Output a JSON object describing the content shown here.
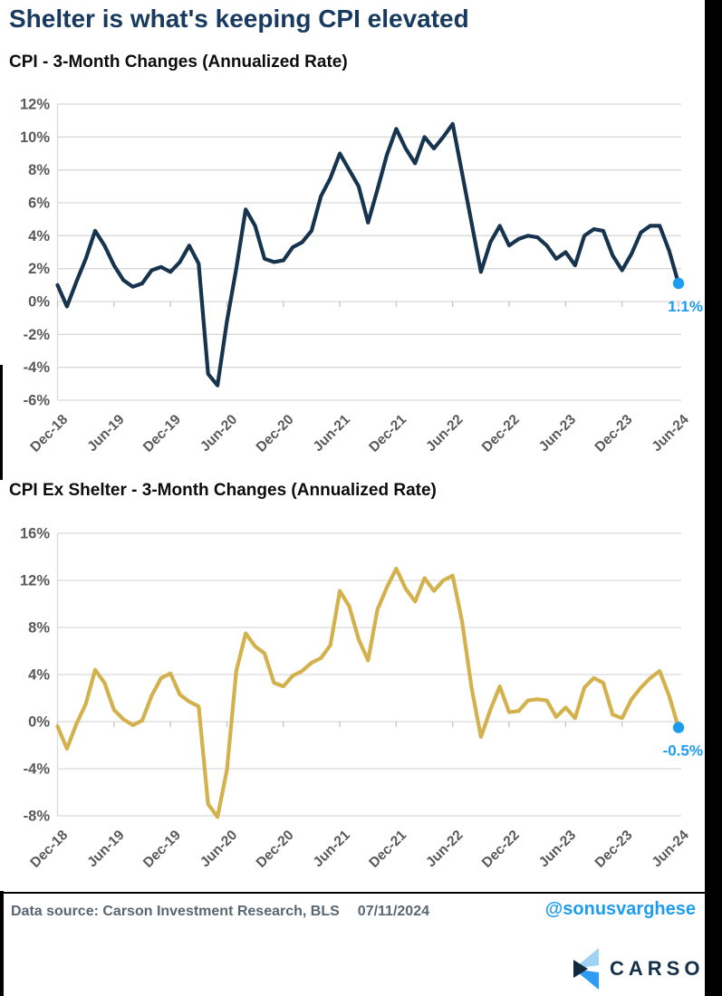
{
  "header": {
    "title": "Shelter is what's keeping CPI elevated"
  },
  "colors": {
    "title_navy": "#173a5e",
    "subtitle_black": "#0d0d0d",
    "axis_text_gray": "#595959",
    "gridline_gray": "#d9d9d9",
    "cpi_line_navy": "#17344f",
    "cpi_ex_shelter_line_gold": "#d3b14c",
    "endpoint_blue": "#1d9bf0",
    "footer_text_gray": "#5a6672",
    "logo_navy": "#14304a",
    "logo_light_blue": "#9fd3f4",
    "logo_bright_blue": "#2d9cf4",
    "logo_dark_navy": "#13293d",
    "border_black": "#000000"
  },
  "chart_data": [
    {
      "type": "line",
      "title": "CPI - 3-Month Changes (Annualized Rate)",
      "unit": "%",
      "frequency": "monthly",
      "x_start": "Dec-18",
      "x_end": "Jun-24",
      "x_tick_labels": [
        "Dec-18",
        "Jun-19",
        "Dec-19",
        "Jun-20",
        "Dec-20",
        "Jun-21",
        "Dec-21",
        "Jun-22",
        "Dec-22",
        "Jun-23",
        "Dec-23",
        "Jun-24"
      ],
      "ylim": [
        -6,
        12
      ],
      "ytick_step": 2,
      "grid": true,
      "line_color": "#17344f",
      "endpoint_color": "#1d9bf0",
      "endpoint_label": "1.1%",
      "values": [
        1.0,
        -0.3,
        1.2,
        2.6,
        4.3,
        3.4,
        2.2,
        1.3,
        0.9,
        1.1,
        1.9,
        2.1,
        1.8,
        2.4,
        3.4,
        2.3,
        -4.4,
        -5.1,
        -1.2,
        2.0,
        5.6,
        4.6,
        2.6,
        2.4,
        2.5,
        3.3,
        3.6,
        4.3,
        6.4,
        7.5,
        9.0,
        8.0,
        7.0,
        4.8,
        6.8,
        8.9,
        10.5,
        9.3,
        8.4,
        10.0,
        9.3,
        10.0,
        10.8,
        7.8,
        4.8,
        1.8,
        3.6,
        4.6,
        3.4,
        3.8,
        4.0,
        3.9,
        3.4,
        2.6,
        3.0,
        2.2,
        4.0,
        4.4,
        4.3,
        2.8,
        1.9,
        2.9,
        4.2,
        4.6,
        4.6,
        3.1,
        1.1
      ]
    },
    {
      "type": "line",
      "title": "CPI Ex Shelter - 3-Month Changes (Annualized Rate)",
      "unit": "%",
      "frequency": "monthly",
      "x_start": "Dec-18",
      "x_end": "Jun-24",
      "x_tick_labels": [
        "Dec-18",
        "Jun-19",
        "Dec-19",
        "Jun-20",
        "Dec-20",
        "Jun-21",
        "Dec-21",
        "Jun-22",
        "Dec-22",
        "Jun-23",
        "Dec-23",
        "Jun-24"
      ],
      "ylim": [
        -8,
        16
      ],
      "ytick_step": 4,
      "grid": true,
      "line_color": "#d3b14c",
      "endpoint_color": "#1d9bf0",
      "endpoint_label": "-0.5%",
      "values": [
        -0.4,
        -2.3,
        -0.2,
        1.5,
        4.4,
        3.3,
        1.0,
        0.2,
        -0.3,
        0.1,
        2.2,
        3.7,
        4.1,
        2.3,
        1.7,
        1.3,
        -7.0,
        -8.1,
        -4.1,
        4.3,
        7.5,
        6.4,
        5.8,
        3.3,
        3.0,
        3.9,
        4.3,
        5.0,
        5.4,
        6.5,
        11.1,
        9.8,
        7.0,
        5.2,
        9.5,
        11.4,
        13.0,
        11.3,
        10.2,
        12.2,
        11.1,
        12.0,
        12.4,
        8.5,
        2.9,
        -1.3,
        1.0,
        3.0,
        0.8,
        0.9,
        1.8,
        1.9,
        1.8,
        0.4,
        1.2,
        0.3,
        2.9,
        3.7,
        3.3,
        0.6,
        0.3,
        1.9,
        2.9,
        3.7,
        4.3,
        2.2,
        -0.5
      ]
    }
  ],
  "footer": {
    "source": "Data source: Carson Investment Research, BLS",
    "date": "07/11/2024",
    "handle": "@sonusvarghese",
    "logo_text": "CARSON"
  }
}
